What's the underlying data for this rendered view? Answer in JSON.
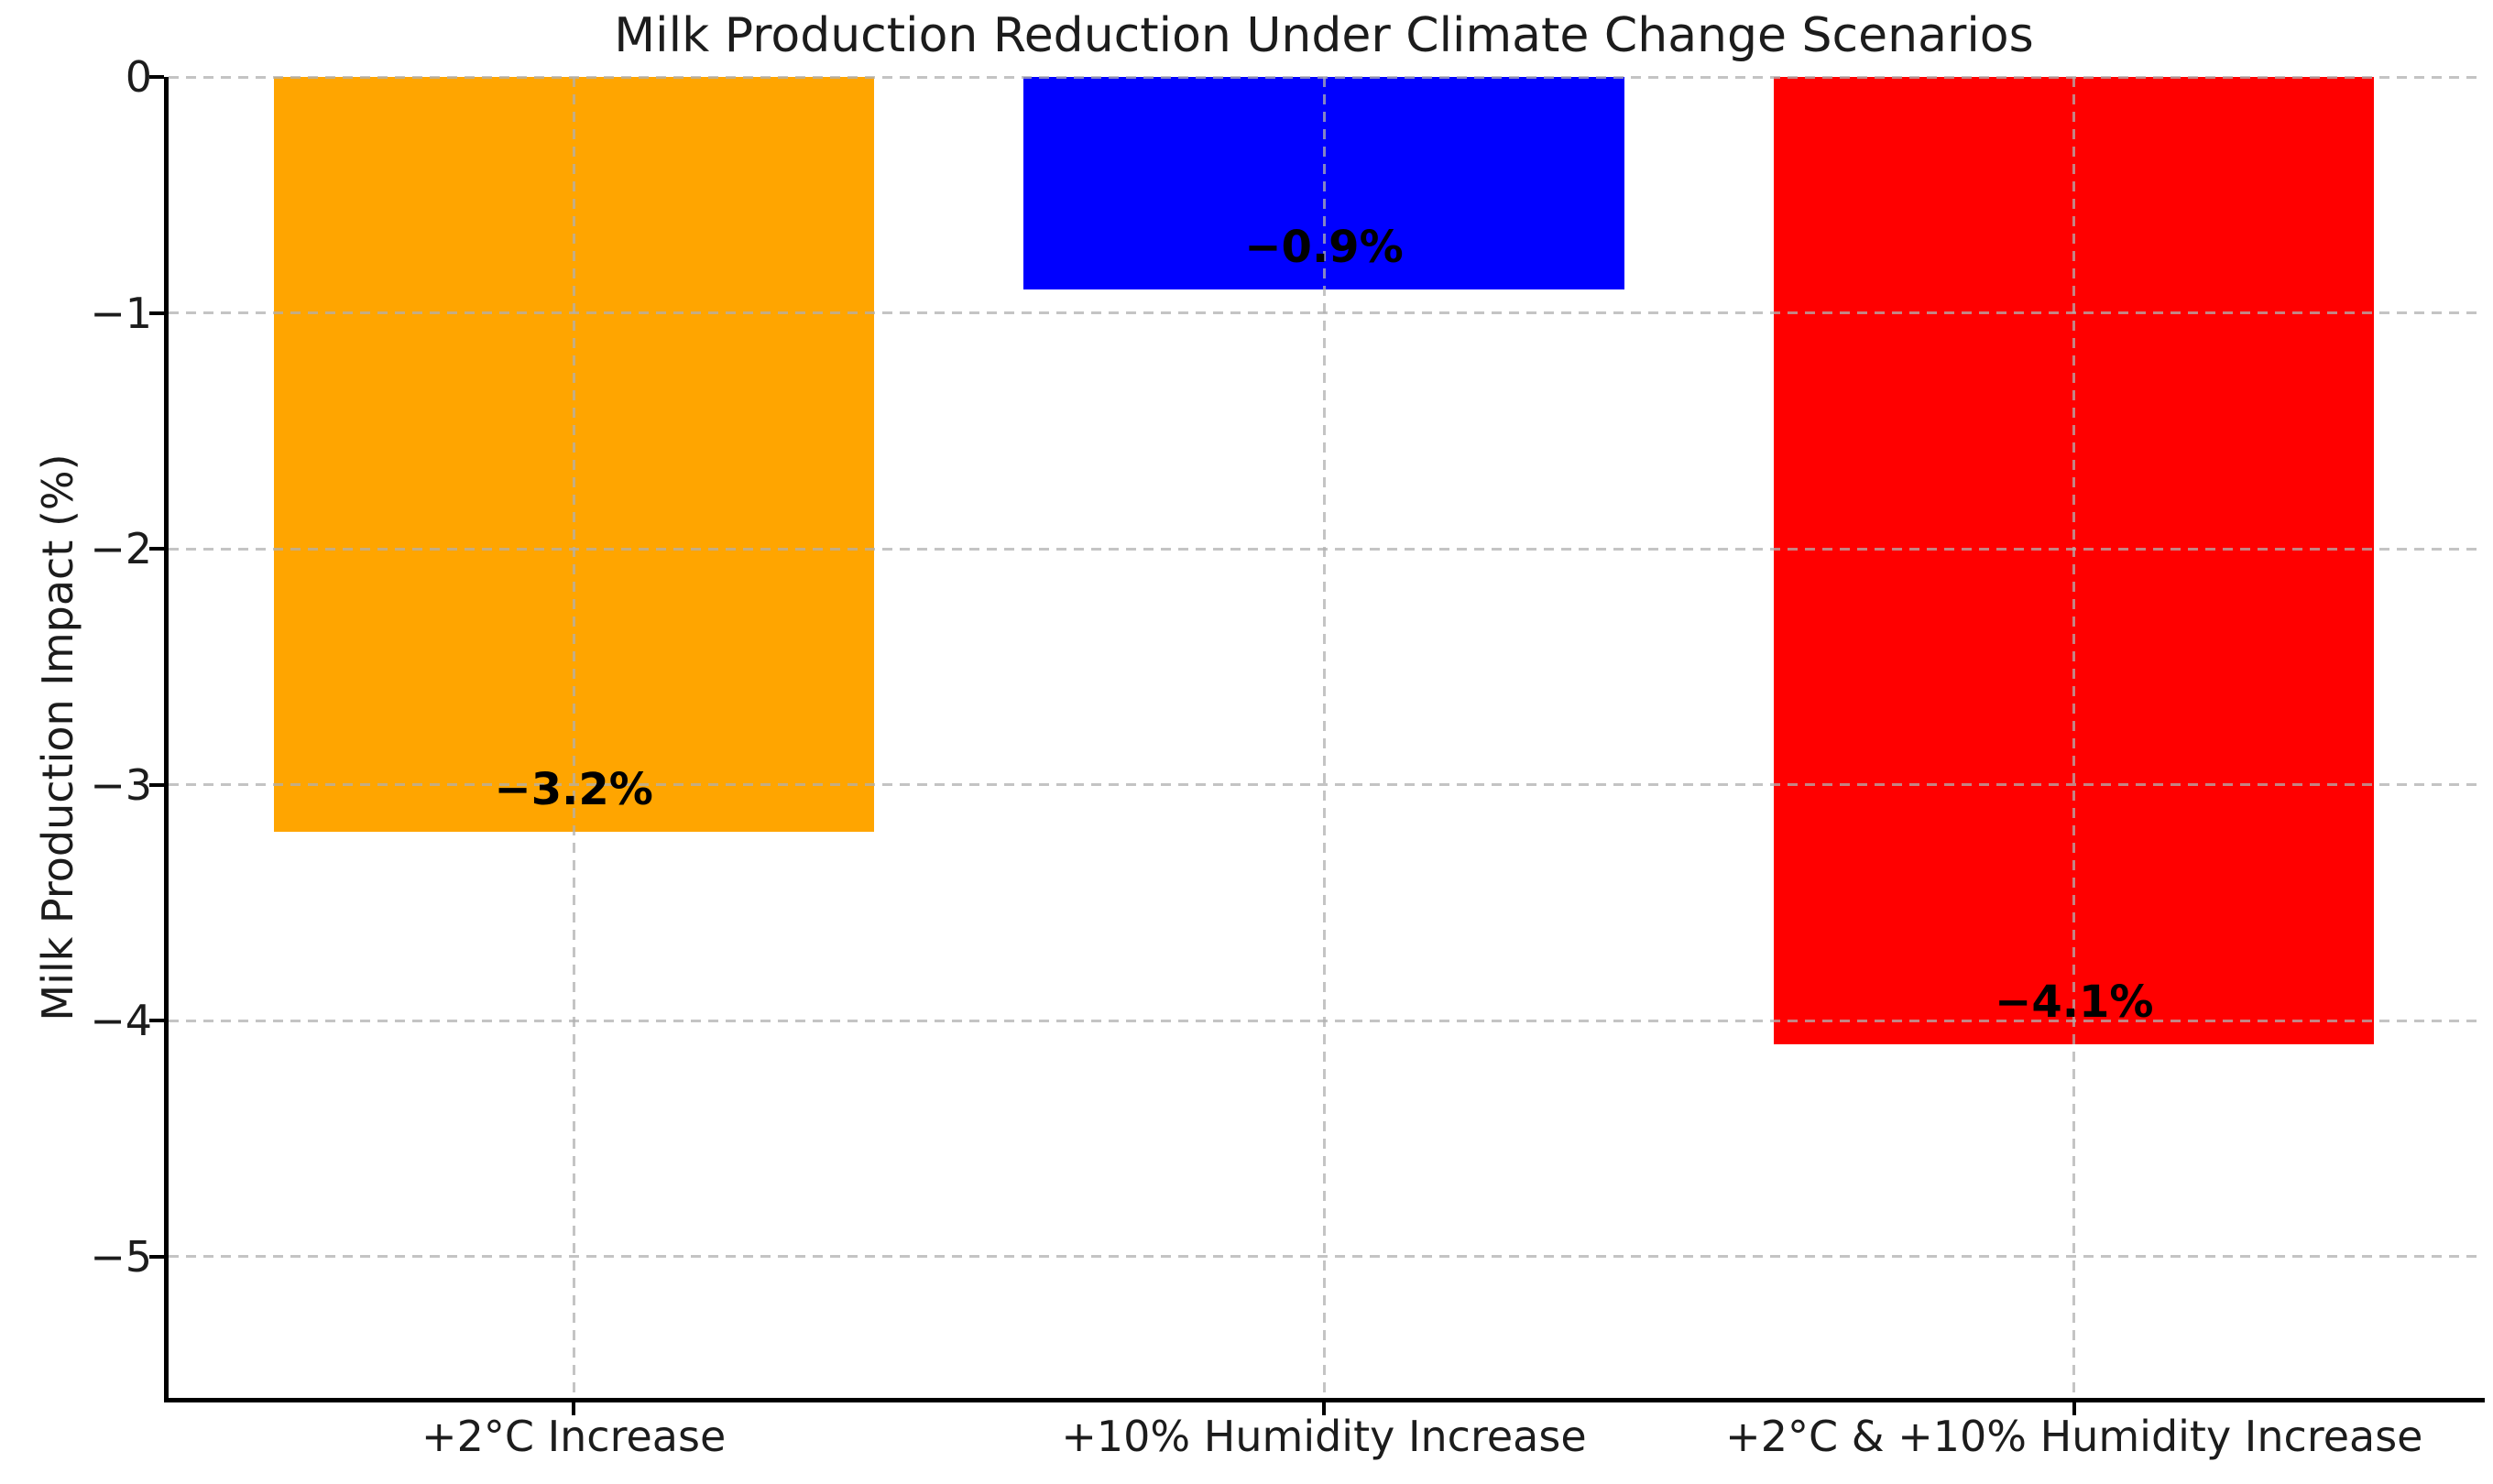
{
  "chart_data": {
    "type": "bar",
    "title": "Milk Production Reduction Under Climate Change Scenarios",
    "xlabel": "",
    "ylabel": "Milk Production Impact (%)",
    "categories": [
      "+2°C Increase",
      "+10% Humidity Increase",
      "+2°C & +10% Humidity Increase"
    ],
    "values": [
      -3.2,
      -0.9,
      -4.1
    ],
    "bar_value_labels": [
      "−3.2%",
      "−0.9%",
      "−4.1%"
    ],
    "bar_colors": [
      "#FFA500",
      "#0000FF",
      "#FF0000"
    ],
    "yticks": [
      0,
      -1,
      -2,
      -3,
      -4,
      -5
    ],
    "ytick_labels": [
      "0",
      "−1",
      "−2",
      "−3",
      "−4",
      "−5"
    ],
    "ylim": [
      -5.6,
      0
    ],
    "xlim": [
      -0.54,
      2.54
    ],
    "bar_width": 0.8,
    "grid": "on",
    "grid_style": "dashed",
    "grid_color": "#b0b0b0",
    "spine_color": "#000000",
    "visible_spines": [
      "left",
      "bottom"
    ],
    "legend": "none"
  }
}
